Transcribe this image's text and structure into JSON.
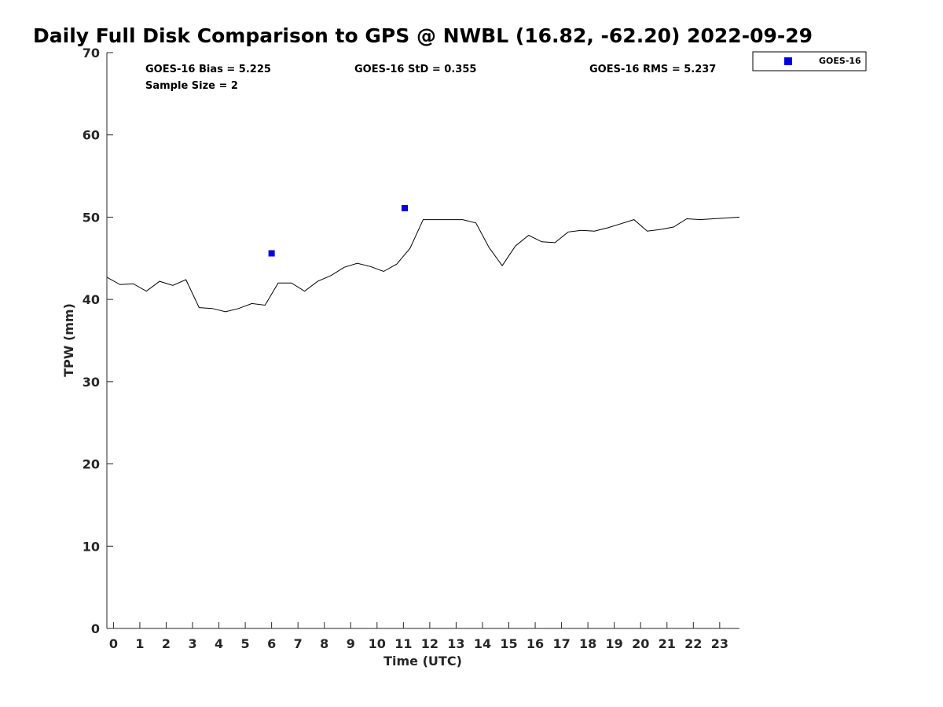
{
  "chart_data": {
    "type": "line",
    "title": "Daily Full Disk Comparison to GPS @ NWBL (16.82, -62.20) 2022-09-29",
    "xlabel": "Time (UTC)",
    "ylabel": "TPW (mm)",
    "xlim": [
      -0.25,
      23.75
    ],
    "ylim": [
      0,
      70
    ],
    "x_ticks": [
      0,
      1,
      2,
      3,
      4,
      5,
      6,
      7,
      8,
      9,
      10,
      11,
      12,
      13,
      14,
      15,
      16,
      17,
      18,
      19,
      20,
      21,
      22,
      23
    ],
    "x_tick_labels": [
      "0",
      "1",
      "2",
      "3",
      "4",
      "5",
      "6",
      "7",
      "8",
      "9",
      "10",
      "11",
      "12",
      "13",
      "14",
      "15",
      "16",
      "17",
      "18",
      "19",
      "20",
      "21",
      "22",
      "23"
    ],
    "y_ticks": [
      0,
      10,
      20,
      30,
      40,
      50,
      60,
      70
    ],
    "y_tick_labels": [
      "0",
      "10",
      "20",
      "30",
      "40",
      "50",
      "60",
      "70"
    ],
    "grid": false,
    "legend_position": "outside-top-right",
    "series": [
      {
        "type": "line",
        "color": "#000000",
        "x": [
          -0.25,
          0.25,
          0.75,
          1.25,
          1.75,
          2.25,
          2.75,
          3.25,
          3.75,
          4.25,
          4.75,
          5.25,
          5.75,
          6.25,
          6.75,
          7.25,
          7.75,
          8.25,
          8.75,
          9.25,
          9.75,
          10.25,
          10.75,
          11.25,
          11.75,
          12.25,
          12.75,
          13.25,
          13.75,
          14.25,
          14.75,
          15.25,
          15.75,
          16.25,
          16.75,
          17.25,
          17.75,
          18.25,
          18.75,
          19.25,
          19.75,
          20.25,
          20.75,
          21.25,
          21.75,
          22.25,
          22.75,
          23.25,
          23.75
        ],
        "y": [
          42.7,
          41.8,
          41.9,
          41.0,
          42.2,
          41.7,
          42.4,
          39.0,
          38.9,
          38.5,
          38.9,
          39.5,
          39.3,
          42.0,
          42.0,
          41.0,
          42.2,
          42.9,
          43.9,
          44.4,
          44.0,
          43.4,
          44.3,
          46.2,
          49.7,
          49.7,
          49.7,
          49.7,
          49.3,
          46.3,
          44.1,
          46.5,
          47.8,
          47.0,
          46.9,
          48.2,
          48.4,
          48.3,
          48.7,
          49.2,
          49.7,
          48.3,
          48.5,
          48.8,
          49.8,
          49.7,
          49.8,
          49.9,
          50.0
        ]
      },
      {
        "name": "GOES-16",
        "type": "scatter",
        "marker": "square",
        "color": "#0000dd",
        "x": [
          6.0,
          11.05
        ],
        "y": [
          45.6,
          51.1
        ]
      }
    ],
    "annotations": [
      "GOES-16 Bias = 5.225",
      "GOES-16 StD = 0.355",
      "GOES-16 RMS = 5.237",
      "Sample Size = 2"
    ]
  }
}
